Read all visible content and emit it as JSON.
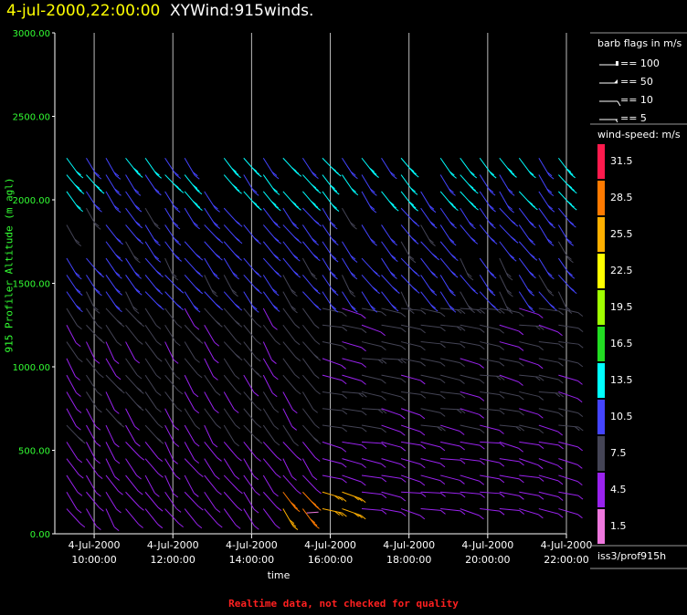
{
  "header": {
    "time_label": "4-jul-2000,22:00:00",
    "title": "XYWind:915winds."
  },
  "footer_note": "Realtime data, not checked for quality",
  "station_label": "iss3/prof915h",
  "chart_data": {
    "type": "wind-barb",
    "xlabel": "time",
    "ylabel": "915 Profiler Altitude (m agl)",
    "ylim": [
      0,
      3000
    ],
    "yticks": [
      "0.00",
      "500.00",
      "1000.00",
      "1500.00",
      "2000.00",
      "2500.00",
      "3000.00"
    ],
    "ytick_values": [
      0,
      500,
      1000,
      1500,
      2000,
      2500,
      3000
    ],
    "xticks": [
      {
        "date": "4-Jul-2000",
        "time": "10:00:00"
      },
      {
        "date": "4-Jul-2000",
        "time": "12:00:00"
      },
      {
        "date": "4-Jul-2000",
        "time": "14:00:00"
      },
      {
        "date": "4-Jul-2000",
        "time": "16:00:00"
      },
      {
        "date": "4-Jul-2000",
        "time": "18:00:00"
      },
      {
        "date": "4-Jul-2000",
        "time": "20:00:00"
      },
      {
        "date": "4-Jul-2000",
        "time": "22:00:00"
      }
    ],
    "xtick_hours": [
      10,
      12,
      14,
      16,
      18,
      20,
      22
    ],
    "barb_legend": {
      "title": "barb flags in m/s",
      "items": [
        "== 100",
        "== 50",
        "== 10",
        "== 5"
      ]
    },
    "speed_legend": {
      "title": "wind-speed: m/s",
      "bins": [
        {
          "label": "31.5",
          "color": "#ff1a4d"
        },
        {
          "label": "28.5",
          "color": "#ff7a00"
        },
        {
          "label": "25.5",
          "color": "#ffb000"
        },
        {
          "label": "22.5",
          "color": "#ffff00"
        },
        {
          "label": "19.5",
          "color": "#a0ff00"
        },
        {
          "label": "16.5",
          "color": "#22dd22"
        },
        {
          "label": "13.5",
          "color": "#00ffff"
        },
        {
          "label": "10.5",
          "color": "#4444ff"
        },
        {
          "label": "7.5",
          "color": "#444455"
        },
        {
          "label": "4.5",
          "color": "#9922ee"
        },
        {
          "label": "1.5",
          "color": "#ee77dd"
        }
      ]
    },
    "grid": "vertical lines at each x tick",
    "profile_hours": [
      9.3,
      9.8,
      10.3,
      10.8,
      11.3,
      11.8,
      12.3,
      12.8,
      13.3,
      13.8,
      14.3,
      14.8,
      15.3,
      15.8,
      16.3,
      16.8,
      17.3,
      17.8,
      18.3,
      18.8,
      19.3,
      19.8,
      20.3,
      20.8,
      21.3,
      21.8
    ],
    "barb_heights_m": [
      150,
      250,
      350,
      450,
      550,
      650,
      750,
      850,
      950,
      1050,
      1150,
      1250,
      1350,
      1450,
      1550,
      1650,
      1750,
      1850,
      1950,
      2050,
      2150,
      2250
    ]
  }
}
